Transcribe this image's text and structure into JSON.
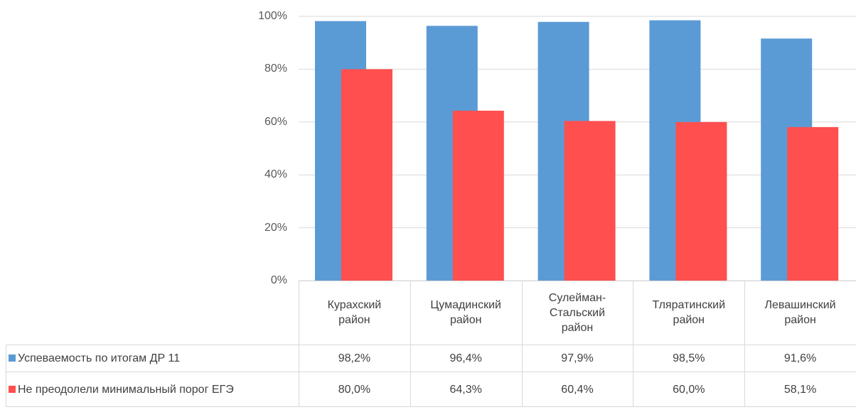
{
  "chart_data": {
    "type": "bar",
    "categories": [
      "Курахский район",
      "Цумадинский район",
      "Сулейман-Стальский район",
      "Тляратинский район",
      "Левашинский район"
    ],
    "series": [
      {
        "name": "Успеваемость по итогам ДР 11",
        "color": "#5b9bd5",
        "values": [
          98.2,
          96.4,
          97.9,
          98.5,
          91.6
        ],
        "value_labels": [
          "98,2%",
          "96,4%",
          "97,9%",
          "98,5%",
          "91,6%"
        ]
      },
      {
        "name": "Не преодолели минимальный порог ЕГЭ",
        "color": "#ff4f4f",
        "values": [
          80.0,
          64.3,
          60.4,
          60.0,
          58.1
        ],
        "value_labels": [
          "80,0%",
          "64,3%",
          "60,4%",
          "60,0%",
          "58,1%"
        ]
      }
    ],
    "ylim": [
      0,
      100
    ],
    "yticks": [
      {
        "value": 0,
        "label": "0%"
      },
      {
        "value": 20,
        "label": "20%"
      },
      {
        "value": 40,
        "label": "40%"
      },
      {
        "value": 60,
        "label": "60%"
      },
      {
        "value": 80,
        "label": "80%"
      },
      {
        "value": 100,
        "label": "100%"
      }
    ],
    "grid": true
  }
}
